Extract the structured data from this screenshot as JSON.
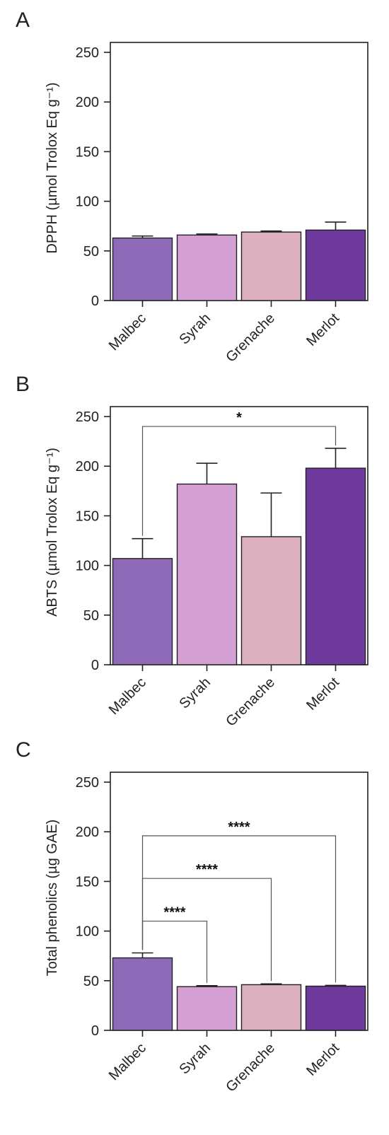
{
  "chart_data": [
    {
      "type": "bar",
      "panel_label": "A",
      "categories": [
        "Malbec",
        "Syrah",
        "Grenache",
        "Merlot"
      ],
      "values": [
        63,
        66,
        69,
        71
      ],
      "errors": [
        2,
        1,
        1,
        8
      ],
      "colors": [
        "#8f6ab8",
        "#d4a0d4",
        "#ddb0c0",
        "#6e3a9e"
      ],
      "ylabel": "DPPH (µmol Trolox Eq g⁻¹)",
      "ylim": [
        0,
        260
      ],
      "yticks": [
        "0",
        "50",
        "100",
        "150",
        "200",
        "250"
      ],
      "significance": []
    },
    {
      "type": "bar",
      "panel_label": "B",
      "categories": [
        "Malbec",
        "Syrah",
        "Grenache",
        "Merlot"
      ],
      "values": [
        107,
        182,
        129,
        198
      ],
      "errors": [
        20,
        21,
        44,
        20
      ],
      "colors": [
        "#8f6ab8",
        "#d4a0d4",
        "#ddb0c0",
        "#6e3a9e"
      ],
      "ylabel": "ABTS (µmol Trolox Eq g⁻¹)",
      "ylim": [
        0,
        260
      ],
      "yticks": [
        "0",
        "50",
        "100",
        "150",
        "200",
        "250"
      ],
      "significance": [
        {
          "from": 0,
          "to": 3,
          "level": 240,
          "label": "*"
        }
      ]
    },
    {
      "type": "bar",
      "panel_label": "C",
      "categories": [
        "Malbec",
        "Syrah",
        "Grenache",
        "Merlot"
      ],
      "values": [
        73,
        44,
        46,
        44.5
      ],
      "errors": [
        5,
        1,
        0.8,
        0.8
      ],
      "colors": [
        "#8f6ab8",
        "#d4a0d4",
        "#ddb0c0",
        "#6e3a9e"
      ],
      "ylabel": "Total phenolics (µg GAE)",
      "ylim": [
        0,
        260
      ],
      "yticks": [
        "0",
        "50",
        "100",
        "150",
        "200",
        "250"
      ],
      "significance": [
        {
          "from": 0,
          "to": 1,
          "level": 110,
          "label": "****"
        },
        {
          "from": 0,
          "to": 2,
          "level": 153,
          "label": "****"
        },
        {
          "from": 0,
          "to": 3,
          "level": 196,
          "label": "****"
        }
      ]
    }
  ]
}
